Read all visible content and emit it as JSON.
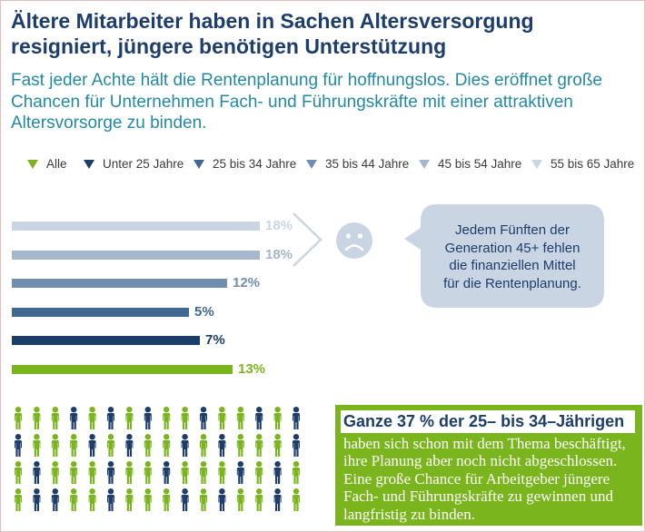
{
  "header": {
    "title_lines": [
      "Ältere Mitarbeiter haben in Sachen Altersversorgung",
      "resigniert, jüngere benötigen Unterstützung"
    ],
    "subtitle_lines": [
      "Fast jeder Achte hält die Rentenplanung für hoffnungslos. Dies eröffnet große",
      "Chancen für Unternehmen Fach- und Führungskräfte mit einer attraktiven",
      "Altersvorsorge zu binden."
    ]
  },
  "chart_data": {
    "type": "bar",
    "categories": [
      "Alle",
      "Unter 25 Jahre",
      "25 bis 34 Jahre",
      "35 bis 44 Jahre",
      "45 bis 54 Jahre",
      "55 bis 65 Jahre"
    ],
    "values": [
      13,
      7,
      5,
      12,
      18,
      18
    ],
    "value_labels": [
      "13%",
      "7%",
      "5%",
      "12%",
      "18%",
      "18%"
    ],
    "colors": [
      "#7ab51d",
      "#1b3d69",
      "#3f6893",
      "#6f8eb0",
      "#a4b7cc",
      "#c9d5e3"
    ]
  },
  "callout": {
    "lines": [
      "Jedem Fünften der",
      "Generation 45+ fehlen",
      "die finanziellen Mittel",
      "für die Rentenplanung."
    ]
  },
  "info_box": {
    "heading": "Ganze 37 % der 25– bis 34–Jährigen",
    "body_lines": [
      "haben sich schon mit dem Thema beschäftigt,",
      "ihre Planung aber noch nicht abgeschlossen.",
      "Eine große Chance für Arbeitgeber jüngere",
      "Fach- und Führungskräfte zu gewinnen und",
      "langfristig zu binden."
    ]
  },
  "icons": {
    "legend_marker": "triangle-down-icon",
    "chevron": "chevron-right-icon",
    "sad_face": "sad-face-icon",
    "person": "person-icon"
  },
  "colors": {
    "title": "#1d3d6b",
    "subtitle": "#2489a5",
    "callout_fill": "#c9d5e3",
    "info_box": "#7ab51d",
    "people_green": "#7ab51d",
    "people_navy": "#1d3d6b"
  }
}
